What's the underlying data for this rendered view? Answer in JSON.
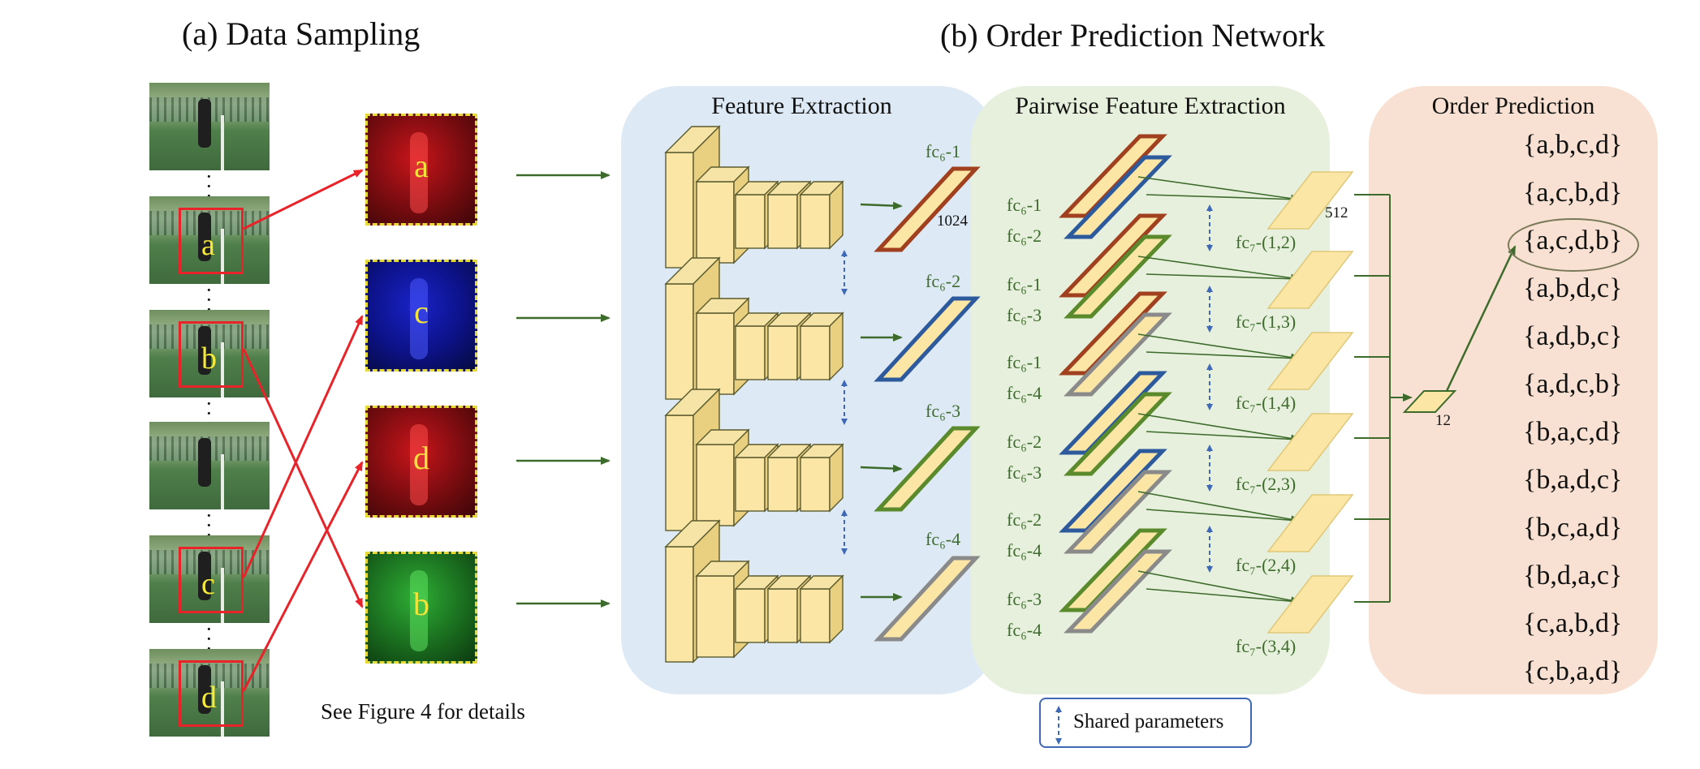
{
  "colors": {
    "panel_feature": "#dde9f5",
    "panel_pairwise": "#e6f0dc",
    "panel_order": "#f8e1d2",
    "arrow_red": "#e8232a",
    "arrow_green": "#3d6b2b",
    "shared_blue": "#3f68b6",
    "fc_a": "#a0401e",
    "fc_c": "#2d5a9c",
    "fc_d": "#5a8a2c",
    "fc_b": "#8a8a8a",
    "block_fill": "#fbe6a6"
  },
  "sampling": {
    "title": "(a) Data Sampling",
    "frame_labels": [
      "a",
      "b",
      "c",
      "d"
    ],
    "crop_labels": [
      "a",
      "c",
      "d",
      "b"
    ],
    "see_figure": "See Figure 4 for details"
  },
  "network": {
    "title": "(b) Order Prediction Network",
    "feature_extraction": {
      "title": "Feature Extraction",
      "fc6_labels": [
        "fc₆-1",
        "fc₆-2",
        "fc₆-3",
        "fc₆-4"
      ],
      "fc6_size": "1024"
    },
    "pairwise": {
      "title": "Pairwise Feature Extraction",
      "pairs": [
        {
          "top": "fc₆-1",
          "bottom": "fc₆-2",
          "out": "fc₇-(1,2)"
        },
        {
          "top": "fc₆-1",
          "bottom": "fc₆-3",
          "out": "fc₇-(1,3)"
        },
        {
          "top": "fc₆-1",
          "bottom": "fc₆-4",
          "out": "fc₇-(1,4)"
        },
        {
          "top": "fc₆-2",
          "bottom": "fc₆-3",
          "out": "fc₇-(2,3)"
        },
        {
          "top": "fc₆-2",
          "bottom": "fc₆-4",
          "out": "fc₇-(2,4)"
        },
        {
          "top": "fc₆-3",
          "bottom": "fc₆-4",
          "out": "fc₇-(3,4)"
        }
      ],
      "fc7_size": "512"
    },
    "order_prediction": {
      "title": "Order Prediction",
      "output_size": "12",
      "permutations": [
        "{a,b,c,d}",
        "{a,c,b,d}",
        "{a,c,d,b}",
        "{a,b,d,c}",
        "{a,d,b,c}",
        "{a,d,c,b}",
        "{b,a,c,d}",
        "{b,a,d,c}",
        "{b,c,a,d}",
        "{b,d,a,c}",
        "{c,a,b,d}",
        "{c,b,a,d}"
      ],
      "highlighted_index": 2
    },
    "legend": {
      "shared_parameters": "Shared parameters"
    }
  }
}
